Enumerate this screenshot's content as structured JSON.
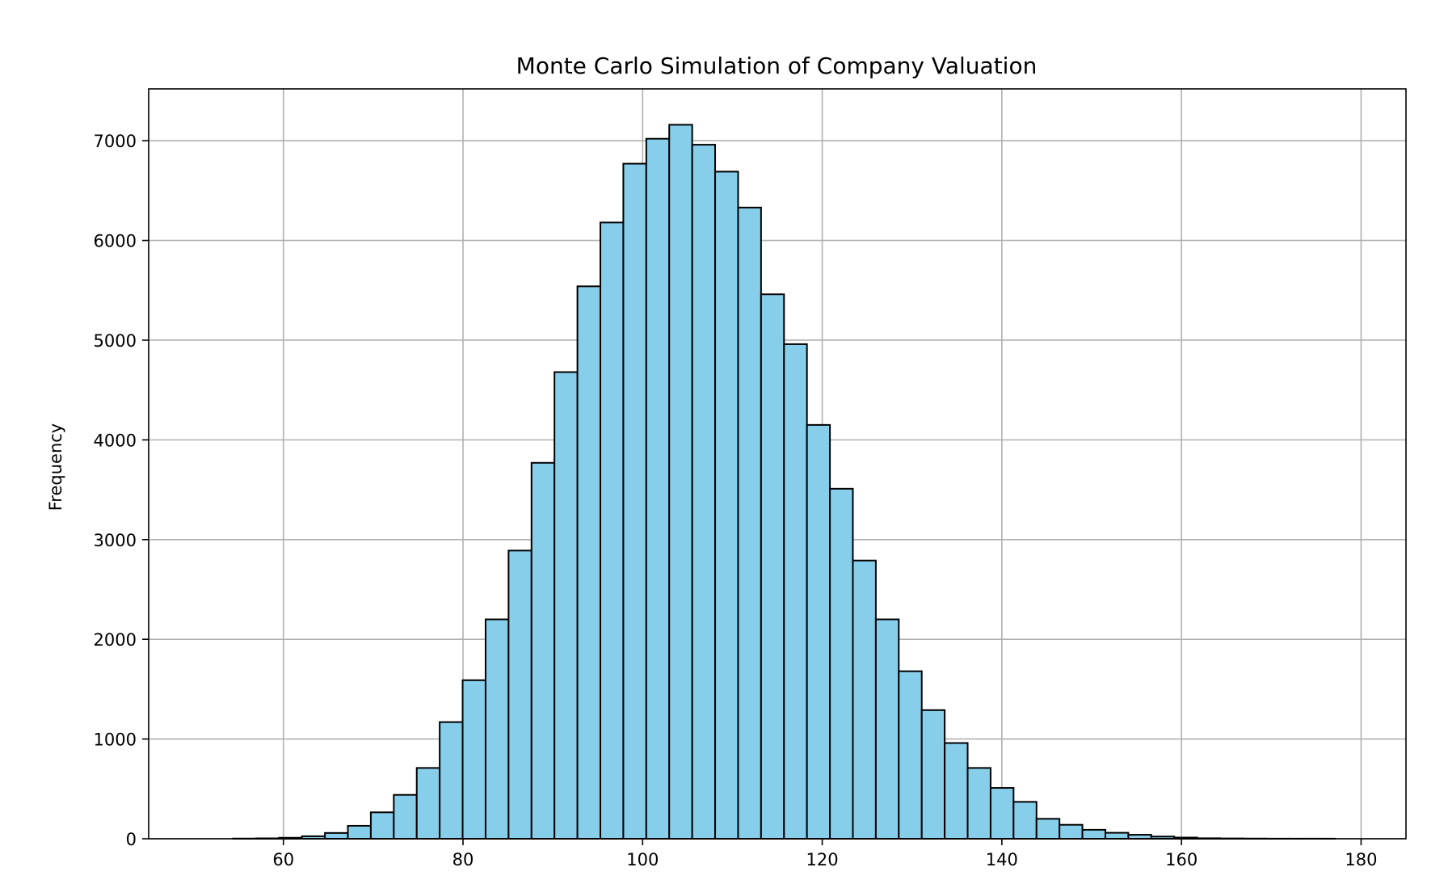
{
  "chart_data": {
    "type": "bar",
    "title": "Monte Carlo Simulation of Company Valuation",
    "xlabel": "",
    "ylabel": "Frequency",
    "xlim": [
      45,
      185
    ],
    "ylim": [
      0,
      7520
    ],
    "xticks": [
      60,
      80,
      100,
      120,
      140,
      160,
      180
    ],
    "yticks": [
      0,
      1000,
      2000,
      3000,
      4000,
      5000,
      6000,
      7000
    ],
    "grid": true,
    "bar_color": "#87ceeb",
    "edge_color": "#000000",
    "bins": {
      "start": 54.4,
      "width": 2.556,
      "counts": [
        2,
        4,
        10,
        25,
        58,
        130,
        265,
        440,
        710,
        1170,
        1590,
        2200,
        2890,
        3770,
        4680,
        5540,
        6180,
        6770,
        7020,
        7160,
        6960,
        6690,
        6330,
        5460,
        4960,
        4150,
        3510,
        2790,
        2200,
        1680,
        1290,
        960,
        710,
        510,
        370,
        200,
        140,
        90,
        60,
        40,
        22,
        12,
        5,
        3,
        2,
        1,
        1,
        1,
        0,
        0
      ]
    }
  }
}
